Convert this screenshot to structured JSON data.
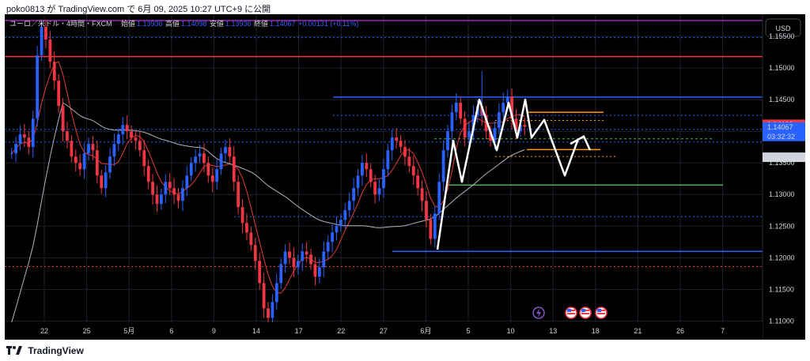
{
  "header": {
    "publish_line": "poko0813 が TradingView.com で 6月 09, 2025 10:27 UTC+9 に公開"
  },
  "footer": {
    "brand": "TradingView"
  },
  "legend": {
    "symbol": "ユーロ／米ドル・4時間・FXCM",
    "open_label": "始値",
    "open_value": "1.13936",
    "high_label": "高値",
    "high_value": "1.14098",
    "low_label": "安値",
    "low_value": "1.13936",
    "close_label": "終値",
    "close_value": "1.14067",
    "change": "+0.00131 (+0.11%)"
  },
  "price_axis": {
    "currency": "USD",
    "ticks": [
      "1.15500",
      "1.15000",
      "1.14500",
      "1.14000",
      "1.13500",
      "1.13000",
      "1.12500",
      "1.12000",
      "1.11500",
      "1.11000"
    ],
    "label_red": "1.14109",
    "label_blue_price": "1.14067",
    "label_blue_timer": "03:32:32",
    "label_grey": "1.13589"
  },
  "colors": {
    "background": "#000000",
    "up_candle": "#2962ff",
    "down_candle": "#f23645",
    "ma_fast": "#e53935",
    "ma_slow": "#b2b5be",
    "line_blue": "#2962ff",
    "line_red": "#f23645",
    "line_magenta": "#9c27b0",
    "line_orange": "#ff9800",
    "line_green": "#4caf50",
    "zigzag": "#ffffff",
    "event_purple": "#7e57c2"
  },
  "chart_data": {
    "type": "candlestick",
    "instrument": "EUR/USD",
    "timeframe": "4h",
    "x_tick_labels": [
      "22",
      "25",
      "5月",
      "6",
      "9",
      "14",
      "17",
      "22",
      "27",
      "6月",
      "5",
      "10",
      "13",
      "18",
      "21",
      "26",
      "7"
    ],
    "ylim": [
      1.1098,
      1.1585
    ],
    "ma_fast_closes_reference": "faster moving average (red)",
    "ma_slow_reference": "slower moving average (grey)",
    "price_path": [
      1.1365,
      1.138,
      1.1395,
      1.139,
      1.1375,
      1.142,
      1.152,
      1.1565,
      1.1545,
      1.151,
      1.148,
      1.144,
      1.14,
      1.1385,
      1.136,
      1.135,
      1.134,
      1.1365,
      1.138,
      1.137,
      1.133,
      1.131,
      1.1335,
      1.136,
      1.138,
      1.1395,
      1.141,
      1.14,
      1.139,
      1.1385,
      1.137,
      1.1345,
      1.132,
      1.13,
      1.1285,
      1.13,
      1.132,
      1.131,
      1.13,
      1.129,
      1.131,
      1.133,
      1.135,
      1.136,
      1.1365,
      1.135,
      1.133,
      1.132,
      1.134,
      1.1365,
      1.1375,
      1.136,
      1.132,
      1.128,
      1.1255,
      1.124,
      1.122,
      1.1195,
      1.116,
      1.112,
      1.1105,
      1.113,
      1.116,
      1.119,
      1.121,
      1.12,
      1.1185,
      1.1195,
      1.121,
      1.1205,
      1.119,
      1.117,
      1.1185,
      1.121,
      1.1225,
      1.124,
      1.125,
      1.126,
      1.1275,
      1.129,
      1.131,
      1.133,
      1.135,
      1.134,
      1.132,
      1.13,
      1.131,
      1.134,
      1.137,
      1.139,
      1.1385,
      1.1375,
      1.136,
      1.1345,
      1.133,
      1.131,
      1.129,
      1.126,
      1.123,
      1.127,
      1.132,
      1.137,
      1.14,
      1.143,
      1.1445,
      1.142,
      1.139,
      1.14,
      1.1425,
      1.144,
      1.1425,
      1.14,
      1.1385,
      1.1405,
      1.143,
      1.1445,
      1.1455,
      1.142,
      1.14,
      1.141,
      1.1407
    ]
  },
  "icons": {
    "event_lightning": "lightning-icon",
    "event_flags": [
      "us-flag-icon",
      "us-flag-icon",
      "us-flag-icon"
    ]
  }
}
